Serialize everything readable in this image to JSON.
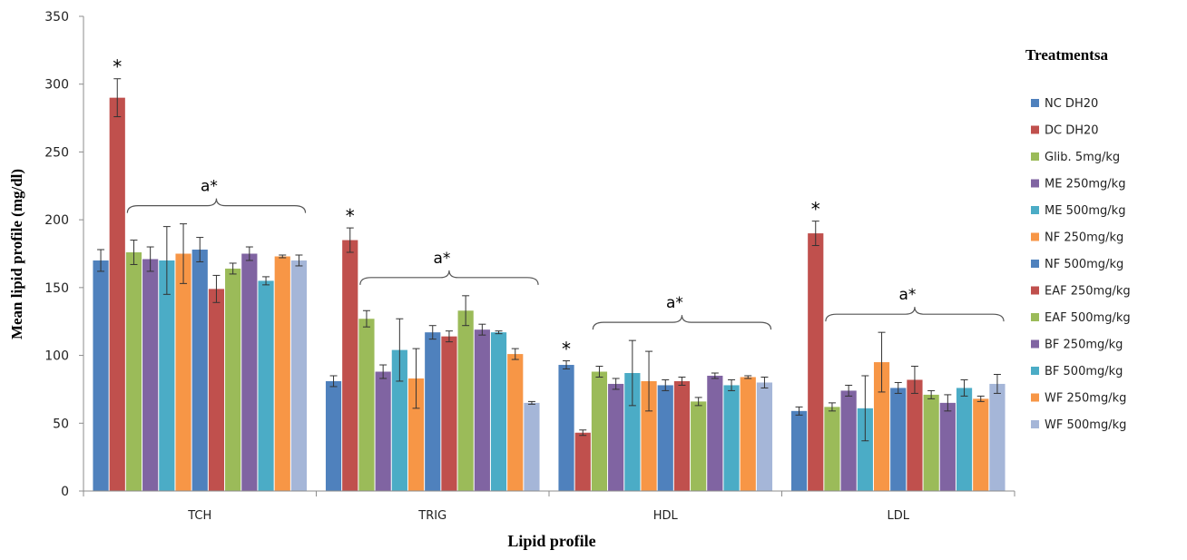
{
  "chart_data": {
    "type": "bar",
    "xlabel": "Lipid profile",
    "ylabel": "Mean lipid profile (mg/dl)",
    "ylim": [
      0,
      350
    ],
    "yticks": [
      0,
      50,
      100,
      150,
      200,
      250,
      300,
      350
    ],
    "grid": false,
    "legend_position": "right",
    "legend_title": "Treatmentsa",
    "categories": [
      "TCH",
      "TRIG",
      "HDL",
      "LDL"
    ],
    "series": [
      {
        "name": "NC DH20",
        "color": "#4f81bd",
        "values": [
          170,
          81,
          93,
          59
        ],
        "errors": [
          8,
          4,
          3,
          3
        ]
      },
      {
        "name": "DC DH20",
        "color": "#c0504d",
        "values": [
          290,
          185,
          43,
          190
        ],
        "errors": [
          14,
          9,
          2,
          9
        ]
      },
      {
        "name": "Glib. 5mg/kg",
        "color": "#9bbb59",
        "values": [
          176,
          127,
          88,
          62
        ],
        "errors": [
          9,
          6,
          4,
          3
        ]
      },
      {
        "name": "ME 250mg/kg",
        "color": "#8064a2",
        "values": [
          171,
          88,
          79,
          74
        ],
        "errors": [
          9,
          5,
          4,
          4
        ]
      },
      {
        "name": "ME 500mg/kg",
        "color": "#4bacc6",
        "values": [
          170,
          104,
          87,
          61
        ],
        "errors": [
          25,
          23,
          24,
          24
        ]
      },
      {
        "name": "NF 250mg/kg",
        "color": "#f79646",
        "values": [
          175,
          83,
          81,
          95
        ],
        "errors": [
          22,
          22,
          22,
          22
        ]
      },
      {
        "name": "NF 500mg/kg",
        "color": "#4f81bd",
        "values": [
          178,
          117,
          78,
          76
        ],
        "errors": [
          9,
          5,
          4,
          4
        ]
      },
      {
        "name": "EAF 250mg/kg",
        "color": "#c0504d",
        "values": [
          149,
          114,
          81,
          82
        ],
        "errors": [
          10,
          4,
          3,
          10
        ]
      },
      {
        "name": "EAF 500mg/kg",
        "color": "#9bbb59",
        "values": [
          164,
          133,
          66,
          71
        ],
        "errors": [
          4,
          11,
          3,
          3
        ]
      },
      {
        "name": "BF 250mg/kg",
        "color": "#8064a2",
        "values": [
          175,
          119,
          85,
          65
        ],
        "errors": [
          5,
          4,
          2,
          6
        ]
      },
      {
        "name": "BF 500mg/kg",
        "color": "#4bacc6",
        "values": [
          155,
          117,
          78,
          76
        ],
        "errors": [
          3,
          1,
          4,
          6
        ]
      },
      {
        "name": "WF 250mg/kg",
        "color": "#f79646",
        "values": [
          173,
          101,
          84,
          68
        ],
        "errors": [
          1,
          4,
          1,
          2
        ]
      },
      {
        "name": "WF 500mg/kg",
        "color": "#a5b6d8",
        "values": [
          170,
          65,
          80,
          79
        ],
        "errors": [
          4,
          1,
          4,
          7
        ]
      }
    ],
    "annotations": {
      "star": "*",
      "group_label": "a*",
      "stars": [
        {
          "category": "TCH",
          "series": "DC DH20"
        },
        {
          "category": "TRIG",
          "series": "DC DH20"
        },
        {
          "category": "HDL",
          "series": "NC DH20"
        },
        {
          "category": "LDL",
          "series": "DC DH20"
        }
      ]
    }
  }
}
